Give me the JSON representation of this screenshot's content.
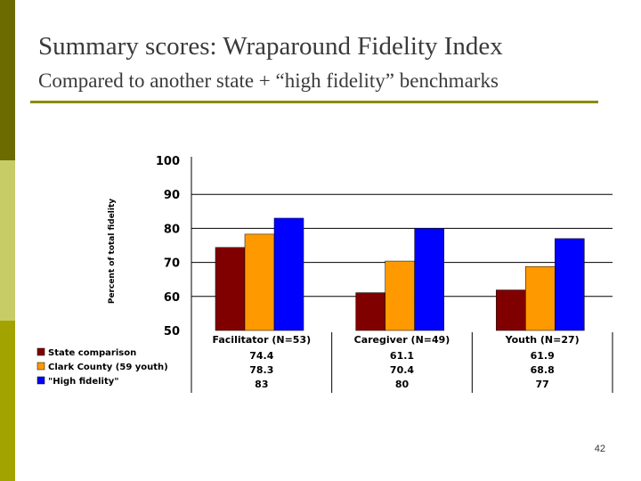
{
  "slide": {
    "title": "Summary scores: Wraparound Fidelity Index",
    "subtitle": "Compared to another state + “high fidelity” benchmarks",
    "page_number": "42"
  },
  "colors": {
    "band_dark": "#6b6b00",
    "band_light": "#c8cc66",
    "band_mid": "#a3a300",
    "rule": "#8b8b00"
  },
  "chart_data": {
    "type": "bar",
    "ylabel": "Percent of total fidelity",
    "ylim": [
      50,
      100
    ],
    "yticks": [
      "100",
      "90",
      "80",
      "70",
      "60",
      "50"
    ],
    "grid": true,
    "legend": "data table below chart",
    "categories": [
      "Facilitator (N=53)",
      "Caregiver (N=49)",
      "Youth (N=27)"
    ],
    "series": [
      {
        "name": "State comparison",
        "color": "#800000",
        "values": [
          74.4,
          61.1,
          61.9
        ],
        "labels": [
          "74.4",
          "61.1",
          "61.9"
        ]
      },
      {
        "name": "Clark County (59 youth)",
        "color": "#ff9900",
        "values": [
          78.3,
          70.4,
          68.8
        ],
        "labels": [
          "78.3",
          "70.4",
          "68.8"
        ]
      },
      {
        "name": "\"High fidelity\"",
        "color": "#0000ff",
        "values": [
          83,
          80,
          77
        ],
        "labels": [
          "83",
          "80",
          "77"
        ]
      }
    ]
  }
}
